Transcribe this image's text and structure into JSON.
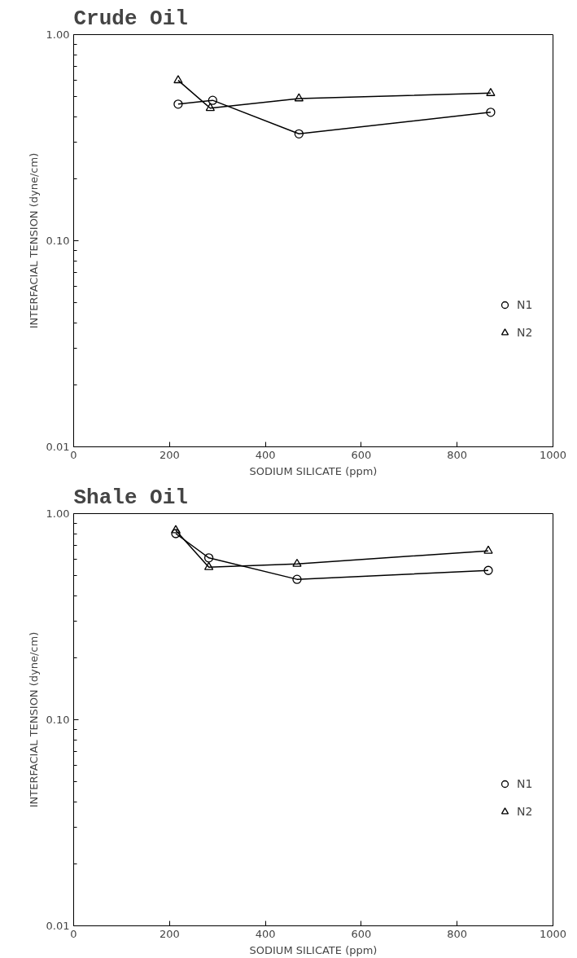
{
  "chart_data": [
    {
      "type": "line",
      "title": "Crude Oil",
      "xlabel": "SODIUM SILICATE (ppm)",
      "ylabel": "INTERFACIAL TENSION (dyne/cm)",
      "log": "y",
      "xlim": [
        0,
        1000
      ],
      "xticks": [
        0,
        200,
        400,
        600,
        800,
        1000
      ],
      "ylim": [
        0.01,
        1
      ],
      "yticks": [
        {
          "value": 0.01,
          "label": "0.01"
        },
        {
          "value": 0.1,
          "label": "0.10"
        },
        {
          "value": 1,
          "label": "1.00"
        }
      ],
      "grid": false,
      "legend": "right",
      "series": [
        {
          "name": "N1",
          "color": "#000000",
          "marker": "circle",
          "x": [
            218,
            290,
            470,
            870
          ],
          "values": [
            0.46,
            0.48,
            0.33,
            0.42
          ]
        },
        {
          "name": "N2",
          "color": "#000000",
          "marker": "triangle",
          "x": [
            218,
            285,
            470,
            870
          ],
          "values": [
            0.6,
            0.44,
            0.49,
            0.52
          ]
        }
      ]
    },
    {
      "type": "line",
      "title": "Shale Oil",
      "xlabel": "SODIUM SILICATE (ppm)",
      "ylabel": "INTERFACIAL TENSION (dyne/cm)",
      "log": "y",
      "xlim": [
        0,
        1000
      ],
      "xticks": [
        0,
        200,
        400,
        600,
        800,
        1000
      ],
      "ylim": [
        0.01,
        1
      ],
      "yticks": [
        {
          "value": 0.01,
          "label": "0.01"
        },
        {
          "value": 0.1,
          "label": "0.10"
        },
        {
          "value": 1,
          "label": "1.00"
        }
      ],
      "grid": false,
      "legend": "right",
      "series": [
        {
          "name": "N1",
          "color": "#000000",
          "marker": "circle",
          "x": [
            213,
            282,
            466,
            865
          ],
          "values": [
            0.8,
            0.61,
            0.48,
            0.53
          ]
        },
        {
          "name": "N2",
          "color": "#000000",
          "marker": "triangle",
          "x": [
            213,
            282,
            466,
            865
          ],
          "values": [
            0.83,
            0.55,
            0.57,
            0.66
          ]
        }
      ]
    }
  ]
}
